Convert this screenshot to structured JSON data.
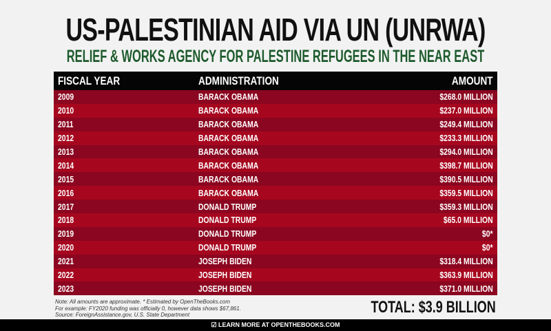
{
  "title": "US-PALESTINIAN AID VIA UN (UNRWA)",
  "subtitle": "RELIEF & WORKS AGENCY FOR PALESTINE REFUGEES IN THE NEAR EAST",
  "table": {
    "headers": [
      "FISCAL YEAR",
      "ADMINISTRATION",
      "AMOUNT"
    ],
    "rows": [
      [
        "2009",
        "BARACK OBAMA",
        "$268.0 MILLION"
      ],
      [
        "2010",
        "BARACK OBAMA",
        "$237.0 MILLION"
      ],
      [
        "2011",
        "BARACK OBAMA",
        "$249.4 MILLION"
      ],
      [
        "2012",
        "BARACK OBAMA",
        "$233.3 MILLION"
      ],
      [
        "2013",
        "BARACK OBAMA",
        "$294.0 MILLION"
      ],
      [
        "2014",
        "BARACK OBAMA",
        "$398.7 MILLION"
      ],
      [
        "2015",
        "BARACK OBAMA",
        "$390.5 MILLION"
      ],
      [
        "2016",
        "BARACK OBAMA",
        "$359.5 MILLION"
      ],
      [
        "2017",
        "DONALD TRUMP",
        "$359.3 MILLION"
      ],
      [
        "2018",
        "DONALD TRUMP",
        "$65.0 MILLION"
      ],
      [
        "2019",
        "DONALD TRUMP",
        "$0*"
      ],
      [
        "2020",
        "DONALD TRUMP",
        "$0*"
      ],
      [
        "2021",
        "JOSEPH BIDEN",
        "$318.4 MILLION"
      ],
      [
        "2022",
        "JOSEPH BIDEN",
        "$363.9 MILLION"
      ],
      [
        "2023",
        "JOSEPH BIDEN",
        "$371.0 MILLION"
      ]
    ]
  },
  "notes": [
    "Note: All amounts are approximate. * Estimated by OpenTheBooks.com",
    "For example: FY2020 funding was officially 0, however data shows $67,861.",
    "Source: ForeignAssistance.gov, U.S. State Department"
  ],
  "total": "TOTAL: $3.9 BILLION",
  "footer": {
    "icon": "checkmark-icon",
    "text": "LEARN MORE AT OPENTHEBOOKS.COM"
  },
  "colors": {
    "row_dark": "#8b0620",
    "row_light": "#a6071f",
    "header": "#050505",
    "subtitle": "#1d5a2c"
  }
}
